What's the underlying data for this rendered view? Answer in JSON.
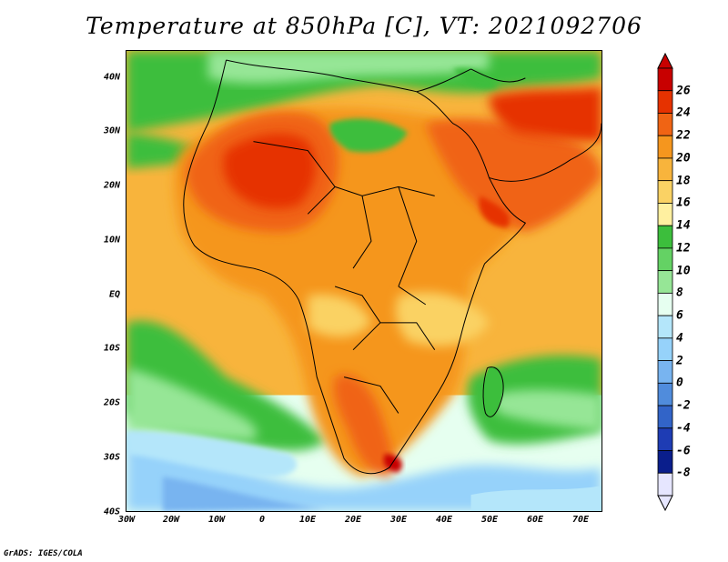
{
  "title": "Temperature at 850hPa [C], VT: 2021092706",
  "credit": "GrADS: IGES/COLA",
  "map": {
    "lat_labels": [
      "40N",
      "30N",
      "20N",
      "10N",
      "EQ",
      "10S",
      "20S",
      "30S",
      "40S"
    ],
    "lon_labels": [
      "30W",
      "20W",
      "10W",
      "0",
      "10E",
      "20E",
      "30E",
      "40E",
      "50E",
      "60E",
      "70E"
    ]
  },
  "colorbar": {
    "labels": [
      "26",
      "24",
      "22",
      "20",
      "18",
      "16",
      "14",
      "12",
      "10",
      "8",
      "6",
      "4",
      "2",
      "0",
      "-2",
      "-4",
      "-6",
      "-8"
    ],
    "colors": [
      "#c80000",
      "#e63200",
      "#f06414",
      "#f5961e",
      "#f8b43c",
      "#fad264",
      "#fff0a0",
      "#3cbe3c",
      "#64d264",
      "#96e696",
      "#e6fff0",
      "#b4e6fa",
      "#96d2fa",
      "#78b4f0",
      "#508cdc",
      "#3264c8",
      "#1e3cb4",
      "#0a1e8c",
      "#e6e6ff"
    ],
    "color_roles": {
      "warm_max": "#c80000",
      "land_warm": "#f8b43c",
      "ocean_green": "#3cbe3c",
      "cold_min": "#0a1e8c"
    }
  }
}
